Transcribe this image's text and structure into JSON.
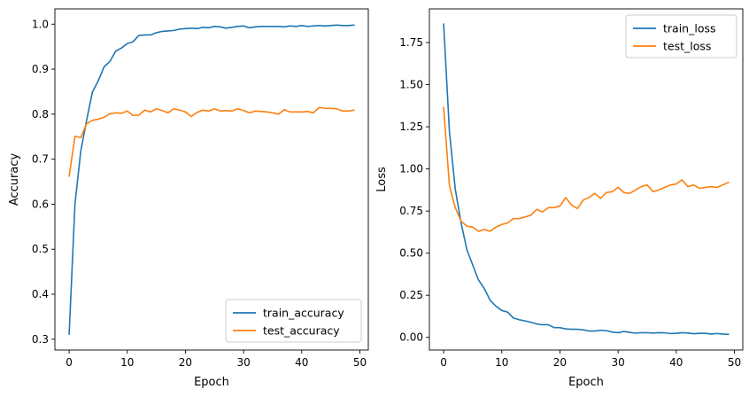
{
  "chart_data": [
    {
      "type": "line",
      "xlabel": "Epoch",
      "ylabel": "Accuracy",
      "xlim": [
        -2.45,
        51.45
      ],
      "ylim": [
        0.276,
        1.034
      ],
      "xticks": [
        0,
        10,
        20,
        30,
        40,
        50
      ],
      "yticks": [
        0.3,
        0.4,
        0.5,
        0.6,
        0.7,
        0.8,
        0.9,
        1.0
      ],
      "ytick_labels": [
        "0.3",
        "0.4",
        "0.5",
        "0.6",
        "0.7",
        "0.8",
        "0.9",
        "1.0"
      ],
      "grid": false,
      "legend": "lower-right",
      "x": [
        0,
        1,
        2,
        3,
        4,
        5,
        6,
        7,
        8,
        9,
        10,
        11,
        12,
        13,
        14,
        15,
        16,
        17,
        18,
        19,
        20,
        21,
        22,
        23,
        24,
        25,
        26,
        27,
        28,
        29,
        30,
        31,
        32,
        33,
        34,
        35,
        36,
        37,
        38,
        39,
        40,
        41,
        42,
        43,
        44,
        45,
        46,
        47,
        48,
        49
      ],
      "series": [
        {
          "name": "train_accuracy",
          "color": "#1f77b4",
          "values": [
            0.311,
            0.6,
            0.718,
            0.786,
            0.849,
            0.874,
            0.905,
            0.917,
            0.94,
            0.947,
            0.957,
            0.961,
            0.975,
            0.976,
            0.976,
            0.981,
            0.984,
            0.985,
            0.986,
            0.989,
            0.99,
            0.991,
            0.99,
            0.993,
            0.992,
            0.995,
            0.994,
            0.991,
            0.993,
            0.995,
            0.996,
            0.992,
            0.994,
            0.995,
            0.995,
            0.995,
            0.995,
            0.994,
            0.996,
            0.995,
            0.997,
            0.995,
            0.996,
            0.997,
            0.996,
            0.997,
            0.998,
            0.997,
            0.997,
            0.998
          ]
        },
        {
          "name": "test_accuracy",
          "color": "#ff7f0e",
          "values": [
            0.662,
            0.751,
            0.748,
            0.779,
            0.786,
            0.789,
            0.793,
            0.801,
            0.803,
            0.802,
            0.807,
            0.797,
            0.798,
            0.809,
            0.805,
            0.812,
            0.808,
            0.803,
            0.812,
            0.809,
            0.805,
            0.795,
            0.804,
            0.809,
            0.807,
            0.812,
            0.807,
            0.808,
            0.807,
            0.812,
            0.808,
            0.803,
            0.807,
            0.806,
            0.805,
            0.803,
            0.8,
            0.81,
            0.805,
            0.805,
            0.805,
            0.806,
            0.803,
            0.815,
            0.813,
            0.813,
            0.812,
            0.807,
            0.807,
            0.809
          ]
        }
      ]
    },
    {
      "type": "line",
      "xlabel": "Epoch",
      "ylabel": "Loss",
      "xlim": [
        -2.45,
        51.45
      ],
      "ylim": [
        -0.075,
        1.95
      ],
      "xticks": [
        0,
        10,
        20,
        30,
        40,
        50
      ],
      "yticks": [
        0.0,
        0.25,
        0.5,
        0.75,
        1.0,
        1.25,
        1.5,
        1.75
      ],
      "ytick_labels": [
        "0.00",
        "0.25",
        "0.50",
        "0.75",
        "1.00",
        "1.25",
        "1.50",
        "1.75"
      ],
      "grid": false,
      "legend": "upper-right",
      "x": [
        0,
        1,
        2,
        3,
        4,
        5,
        6,
        7,
        8,
        9,
        10,
        11,
        12,
        13,
        14,
        15,
        16,
        17,
        18,
        19,
        20,
        21,
        22,
        23,
        24,
        25,
        26,
        27,
        28,
        29,
        30,
        31,
        32,
        33,
        34,
        35,
        36,
        37,
        38,
        39,
        40,
        41,
        42,
        43,
        44,
        45,
        46,
        47,
        48,
        49
      ],
      "series": [
        {
          "name": "train_loss",
          "color": "#1f77b4",
          "values": [
            1.86,
            1.22,
            0.88,
            0.68,
            0.52,
            0.43,
            0.34,
            0.29,
            0.22,
            0.185,
            0.16,
            0.15,
            0.115,
            0.105,
            0.098,
            0.09,
            0.08,
            0.075,
            0.075,
            0.058,
            0.058,
            0.05,
            0.048,
            0.048,
            0.045,
            0.038,
            0.038,
            0.042,
            0.04,
            0.032,
            0.028,
            0.035,
            0.03,
            0.025,
            0.028,
            0.028,
            0.026,
            0.028,
            0.027,
            0.023,
            0.024,
            0.028,
            0.026,
            0.022,
            0.024,
            0.024,
            0.02,
            0.023,
            0.02,
            0.018
          ]
        },
        {
          "name": "test_loss",
          "color": "#ff7f0e",
          "values": [
            1.365,
            0.9,
            0.77,
            0.69,
            0.66,
            0.655,
            0.63,
            0.64,
            0.63,
            0.655,
            0.67,
            0.68,
            0.705,
            0.705,
            0.715,
            0.725,
            0.76,
            0.745,
            0.77,
            0.77,
            0.78,
            0.83,
            0.785,
            0.765,
            0.815,
            0.83,
            0.855,
            0.825,
            0.86,
            0.865,
            0.89,
            0.86,
            0.855,
            0.875,
            0.895,
            0.905,
            0.865,
            0.875,
            0.89,
            0.905,
            0.91,
            0.935,
            0.895,
            0.905,
            0.885,
            0.89,
            0.895,
            0.89,
            0.905,
            0.92
          ]
        }
      ]
    }
  ]
}
